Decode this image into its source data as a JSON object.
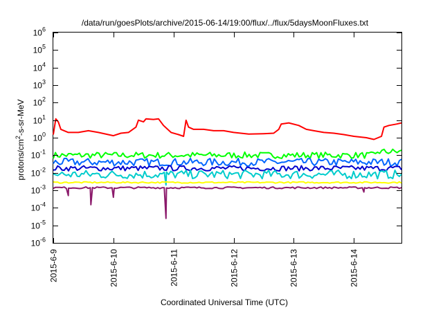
{
  "chart_data": {
    "type": "line",
    "title": "/data/run/goesPlots/archive/2015-06-14/19:00/flux/../flux/5daysMoonFluxes.txt",
    "xlabel": "Coordinated Universal Time (UTC)",
    "ylabel": {
      "pre": "protons/cm",
      "sup": "2",
      "post": "-s-sr-MeV"
    },
    "y_scale": "log",
    "ylim": [
      1e-06,
      1000000.0
    ],
    "xlim": [
      "2015-06-09",
      "2015-06-14T19:00"
    ],
    "x_ticks": [
      "2015-6-9",
      "2015-6-10",
      "2015-6-11",
      "2015-6-12",
      "2015-6-13",
      "2015-6-14"
    ],
    "y_ticks": [
      {
        "base": "10",
        "exp": "-6"
      },
      {
        "base": "10",
        "exp": "-5"
      },
      {
        "base": "10",
        "exp": "-4"
      },
      {
        "base": "10",
        "exp": "-3"
      },
      {
        "base": "10",
        "exp": "-2"
      },
      {
        "base": "10",
        "exp": "-1"
      },
      {
        "base": "10",
        "exp": "0"
      },
      {
        "base": "10",
        "exp": "1"
      },
      {
        "base": "10",
        "exp": "2"
      },
      {
        "base": "10",
        "exp": "3"
      },
      {
        "base": "10",
        "exp": "4"
      },
      {
        "base": "10",
        "exp": "5"
      },
      {
        "base": "10",
        "exp": "6"
      }
    ],
    "grid": false,
    "legend": "none",
    "series": [
      {
        "color": "#ff0000",
        "points": [
          [
            "2015-06-09T00:00",
            1.5
          ],
          [
            "2015-06-09T01:00",
            12
          ],
          [
            "2015-06-09T02:00",
            8
          ],
          [
            "2015-06-09T03:00",
            3
          ],
          [
            "2015-06-09T06:00",
            2
          ],
          [
            "2015-06-09T10:00",
            2
          ],
          [
            "2015-06-09T14:00",
            2.5
          ],
          [
            "2015-06-09T18:00",
            2
          ],
          [
            "2015-06-10T00:00",
            1.3
          ],
          [
            "2015-06-10T03:00",
            1.8
          ],
          [
            "2015-06-10T06:00",
            2
          ],
          [
            "2015-06-10T09:00",
            4
          ],
          [
            "2015-06-10T10:00",
            10
          ],
          [
            "2015-06-10T12:00",
            8
          ],
          [
            "2015-06-10T13:00",
            12
          ],
          [
            "2015-06-10T16:00",
            11
          ],
          [
            "2015-06-10T18:00",
            12
          ],
          [
            "2015-06-10T20:00",
            5
          ],
          [
            "2015-06-10T23:00",
            2
          ],
          [
            "2015-06-11T02:00",
            1.5
          ],
          [
            "2015-06-11T04:00",
            1.2
          ],
          [
            "2015-06-11T05:00",
            10
          ],
          [
            "2015-06-11T06:00",
            4
          ],
          [
            "2015-06-11T08:00",
            3
          ],
          [
            "2015-06-11T12:00",
            3
          ],
          [
            "2015-06-11T16:00",
            2.5
          ],
          [
            "2015-06-11T20:00",
            2.5
          ],
          [
            "2015-06-12T00:00",
            2
          ],
          [
            "2015-06-12T06:00",
            1.6
          ],
          [
            "2015-06-12T12:00",
            1.7
          ],
          [
            "2015-06-12T16:00",
            1.8
          ],
          [
            "2015-06-12T18:00",
            3
          ],
          [
            "2015-06-12T19:00",
            6
          ],
          [
            "2015-06-12T22:00",
            7
          ],
          [
            "2015-06-13T02:00",
            5
          ],
          [
            "2015-06-13T05:00",
            3
          ],
          [
            "2015-06-13T08:00",
            2.5
          ],
          [
            "2015-06-13T12:00",
            2
          ],
          [
            "2015-06-13T16:00",
            1.8
          ],
          [
            "2015-06-13T20:00",
            1.5
          ],
          [
            "2015-06-14T00:00",
            1.2
          ],
          [
            "2015-06-14T05:00",
            1
          ],
          [
            "2015-06-14T08:00",
            0.8
          ],
          [
            "2015-06-14T11:00",
            1.2
          ],
          [
            "2015-06-14T12:00",
            4
          ],
          [
            "2015-06-14T14:00",
            5
          ],
          [
            "2015-06-14T17:00",
            6
          ],
          [
            "2015-06-14T19:00",
            7
          ]
        ]
      },
      {
        "color": "#00ff00",
        "level": 0.1,
        "variation": 0.18,
        "dips": []
      },
      {
        "color": "#0066ff",
        "level": 0.04,
        "variation": 0.22,
        "dips": []
      },
      {
        "color": "#0000cd",
        "level": 0.018,
        "variation": 0.15,
        "dips": []
      },
      {
        "color": "#00cccc",
        "level": 0.008,
        "variation": 0.25,
        "dips": [
          [
            "2015-06-10T21:00",
            0.002
          ]
        ]
      },
      {
        "color": "#ffff00",
        "level": 0.0028,
        "variation": 0.04,
        "dips": []
      },
      {
        "color": "#8b1a6b",
        "level": 0.0014,
        "variation": 0.05,
        "dips": [
          [
            "2015-06-09T06:00",
            0.0005
          ],
          [
            "2015-06-09T15:00",
            0.00015
          ],
          [
            "2015-06-10T00:00",
            0.0004
          ],
          [
            "2015-06-10T21:00",
            2.5e-05
          ],
          [
            "2015-06-14T04:00",
            0.0008
          ]
        ]
      }
    ]
  }
}
